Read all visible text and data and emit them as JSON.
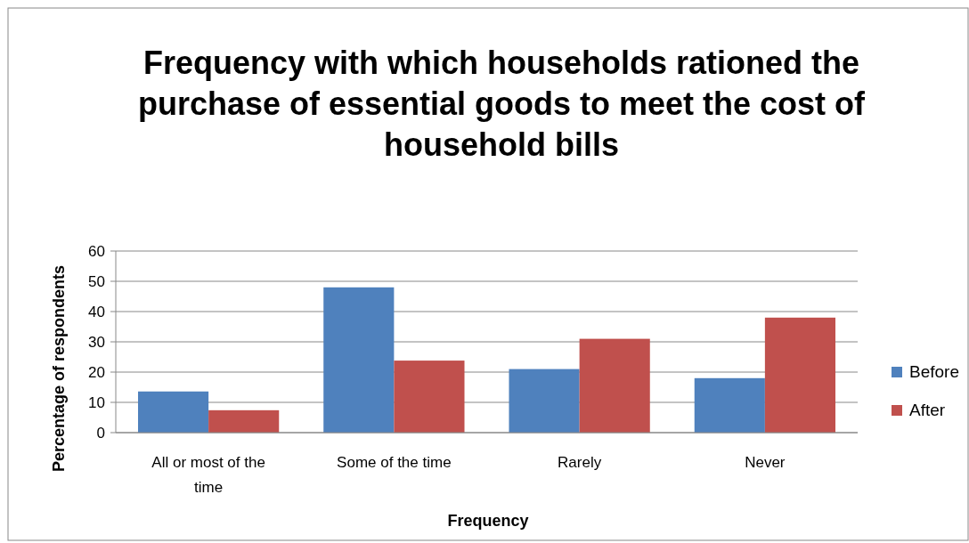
{
  "chart_data": {
    "type": "bar",
    "title": "Frequency with which households rationed the purchase of essential goods  to meet the cost of household bills",
    "xlabel": "Frequency",
    "ylabel": "Percentage of respondents",
    "categories": [
      "All or most of the time",
      "Some of the time",
      "Rarely",
      "Never"
    ],
    "series": [
      {
        "name": "Before",
        "color": "#4f81bd",
        "values": [
          13.6,
          48,
          21,
          18
        ]
      },
      {
        "name": "After",
        "color": "#c0504d",
        "values": [
          7.4,
          23.8,
          31,
          38
        ]
      }
    ],
    "ylim": [
      0,
      60
    ],
    "yticks": [
      0,
      10,
      20,
      30,
      40,
      50,
      60
    ],
    "grid": "y",
    "legend": "right"
  }
}
